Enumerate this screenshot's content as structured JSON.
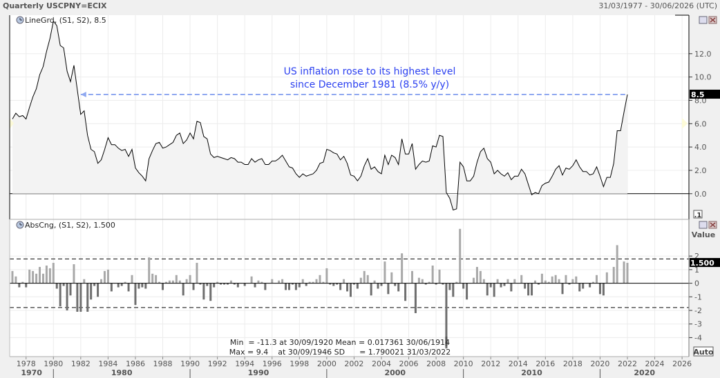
{
  "header": {
    "title": "Quarterly USCPNY=ECIX",
    "date_range": "31/03/1977 - 30/06/2026 (UTC)"
  },
  "upper_panel": {
    "legend": "LineGrd, (S1, S2), 8.5",
    "last_value_label": "8.5",
    "scale_button": ".1",
    "annotation_line1": "US inflation rose to its highest level",
    "annotation_line2": "since December 1981 (8.5% y/y)",
    "annotation_color": "#2a3ff0",
    "arrow_color": "#8fa8f0"
  },
  "lower_panel": {
    "legend": "AbsCng, (S1, S2), 1.500",
    "axis_title": "Value",
    "last_value_label": "1.500",
    "auto_button": "Auto",
    "stats_line1": "Min  = -11.3 at 30/09/1920 Mean = 0.017361 30/06/1914",
    "stats_line2": "Max = 9.4    at 30/09/1946 SD      = 1.790021 31/03/2022",
    "positive_color": "#a8a8a8",
    "negative_color": "#6e6e6e"
  },
  "chart_data": [
    {
      "type": "line",
      "name": "LineGrd",
      "x_start": "1977-Q1",
      "frequency": "quarterly",
      "values": [
        6.4,
        6.9,
        6.6,
        6.7,
        6.4,
        7.4,
        8.3,
        9.0,
        10.2,
        10.9,
        12.2,
        13.3,
        14.8,
        14.4,
        12.7,
        12.5,
        10.5,
        9.6,
        11.0,
        8.9,
        6.8,
        7.1,
        5.0,
        3.8,
        3.6,
        2.6,
        2.9,
        3.8,
        4.8,
        4.2,
        4.2,
        3.9,
        3.7,
        3.8,
        3.2,
        3.8,
        2.2,
        1.8,
        1.5,
        1.1,
        3.0,
        3.7,
        4.3,
        4.4,
        3.9,
        4.0,
        4.2,
        4.4,
        5.0,
        5.2,
        4.3,
        4.6,
        5.2,
        4.7,
        6.2,
        6.1,
        4.9,
        4.7,
        3.4,
        3.1,
        3.2,
        3.1,
        3.0,
        2.9,
        3.1,
        3.0,
        2.7,
        2.7,
        2.5,
        2.5,
        3.0,
        2.7,
        2.9,
        3.0,
        2.5,
        2.5,
        2.8,
        2.8,
        3.0,
        3.3,
        2.8,
        2.3,
        2.2,
        1.7,
        1.4,
        1.7,
        1.5,
        1.6,
        1.7,
        2.0,
        2.6,
        2.7,
        3.8,
        3.7,
        3.5,
        3.4,
        2.9,
        3.2,
        2.6,
        1.6,
        1.5,
        1.1,
        1.5,
        2.4,
        3.0,
        2.1,
        2.3,
        1.9,
        1.7,
        3.3,
        2.5,
        3.3,
        3.1,
        2.5,
        4.7,
        3.4,
        3.4,
        4.3,
        2.1,
        2.5,
        2.8,
        2.7,
        2.8,
        4.1,
        4.0,
        5.0,
        4.9,
        0.1,
        -0.4,
        -1.4,
        -1.3,
        2.7,
        2.3,
        1.1,
        1.1,
        1.5,
        2.7,
        3.6,
        3.9,
        3.0,
        2.7,
        1.7,
        2.0,
        1.7,
        1.5,
        1.8,
        1.2,
        1.5,
        1.5,
        2.1,
        1.7,
        0.8,
        -0.1,
        0.1,
        0.0,
        0.7,
        0.9,
        1.0,
        1.5,
        2.1,
        2.4,
        1.6,
        2.2,
        2.1,
        2.4,
        2.9,
        2.3,
        1.9,
        1.9,
        1.6,
        1.7,
        2.3,
        1.5,
        0.6,
        1.4,
        1.4,
        2.6,
        5.4,
        5.4,
        7.0,
        8.5
      ],
      "ylim": [
        -2.2,
        15.3
      ],
      "y_ticks": [
        "0.0",
        "2.0",
        "4.0",
        "6.0",
        "8.0",
        "10.0",
        "12.0"
      ],
      "reference_line": 0,
      "highlight_level": 8.5,
      "grid": true
    },
    {
      "type": "bar",
      "name": "AbsCng",
      "definition": "quarter-on-quarter absolute change of LineGrd",
      "ylim": [
        -5.4,
        4.7
      ],
      "y_ticks": [
        "-4",
        "-3",
        "-2",
        "-1",
        "0",
        "1",
        "2"
      ],
      "sd_band": 1.79,
      "grid": true
    }
  ],
  "x_axis": {
    "range": [
      1976.8,
      2026.5
    ],
    "year_ticks": [
      "1978",
      "1980",
      "1982",
      "1984",
      "1986",
      "1988",
      "1990",
      "1992",
      "1994",
      "1996",
      "1998",
      "2000",
      "2002",
      "2004",
      "2006",
      "2008",
      "2010",
      "2012",
      "2014",
      "2016",
      "2018",
      "2020",
      "2022",
      "2024",
      "2026"
    ],
    "decades": [
      "1970",
      "1980",
      "1990",
      "2000",
      "2010",
      "2020"
    ]
  }
}
